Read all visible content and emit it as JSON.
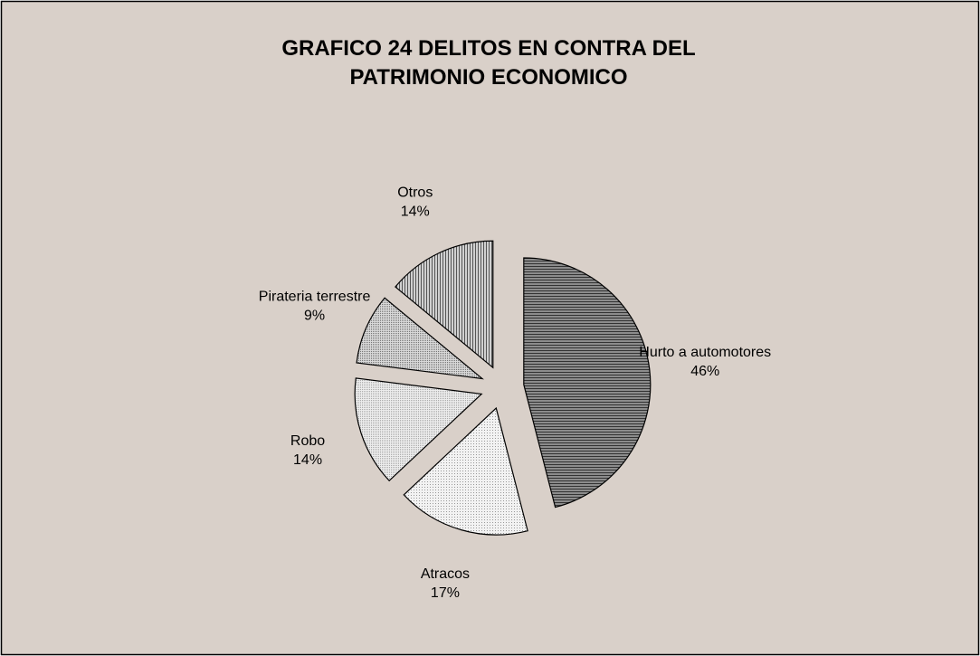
{
  "chart_data": {
    "type": "pie",
    "title": "GRAFICO 24  DELITOS EN CONTRA DEL PATRIMONIO ECONOMICO",
    "categories": [
      "Hurto a automotores",
      "Atracos",
      "Robo",
      "Pirateria terrestre",
      "Otros"
    ],
    "values": [
      46,
      17,
      14,
      9,
      14
    ],
    "value_labels": [
      "46%",
      "17%",
      "14%",
      "9%",
      "14%"
    ],
    "colors": [
      "#8c8c8c",
      "#f2f2f2",
      "#ececec",
      "#d8d8d8",
      "#d0d0d0"
    ]
  }
}
